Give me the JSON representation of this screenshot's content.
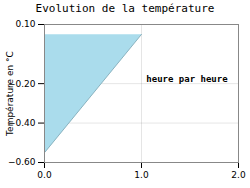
{
  "chart_data": {
    "type": "area",
    "title": "Evolution de la température",
    "ylabel": "Température en °C",
    "x": [
      0,
      0,
      1
    ],
    "values": [
      0.05,
      -0.55,
      0.05
    ],
    "color": "#aadcec",
    "xlim": [
      0,
      2
    ],
    "ylim": [
      -0.6,
      0.1
    ],
    "xticks": [
      0,
      1,
      2
    ],
    "yticks": [
      0.1,
      -0.2,
      -0.4,
      -0.6
    ],
    "grid": true,
    "annotations": [
      {
        "text": "heure par heure",
        "x": 1.05,
        "y": -0.16
      }
    ]
  }
}
